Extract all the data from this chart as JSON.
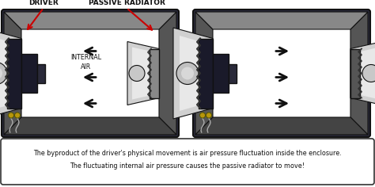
{
  "bg_color": "#ffffff",
  "box_bg": "#ffffff",
  "box_border": "#333333",
  "enclosure_inner": "#ffffff",
  "enclosure_border": "#111111",
  "baffle_dark": "#2a2a3a",
  "baffle_side": "#888888",
  "baffle_tb": "#aaaaaa",
  "speaker_frame": "#1a1a2a",
  "speaker_cone_outer": "#b0b0b0",
  "speaker_cone_inner": "#e0e0e0",
  "speaker_cone_center": "#888888",
  "surround_color": "#333333",
  "magnet_color": "#2a2a3a",
  "arrow_color": "#111111",
  "label_color": "#111111",
  "red_arrow": "#cc0000",
  "wire_color": "#aaaaaa",
  "terminal_color": "#b8960c",
  "caption_line1": "The byproduct of the driver's physical movement is air pressure fluctuation inside the enclosure.",
  "caption_line2": "The fluctuating internal air pressure causes the passive radiator to move!",
  "label_driver": "DRIVER",
  "label_passive": "PASSIVE RADIATOR",
  "label_internal": "INTERNAL\nAIR",
  "fig_width": 4.74,
  "fig_height": 2.36,
  "dpi": 100
}
